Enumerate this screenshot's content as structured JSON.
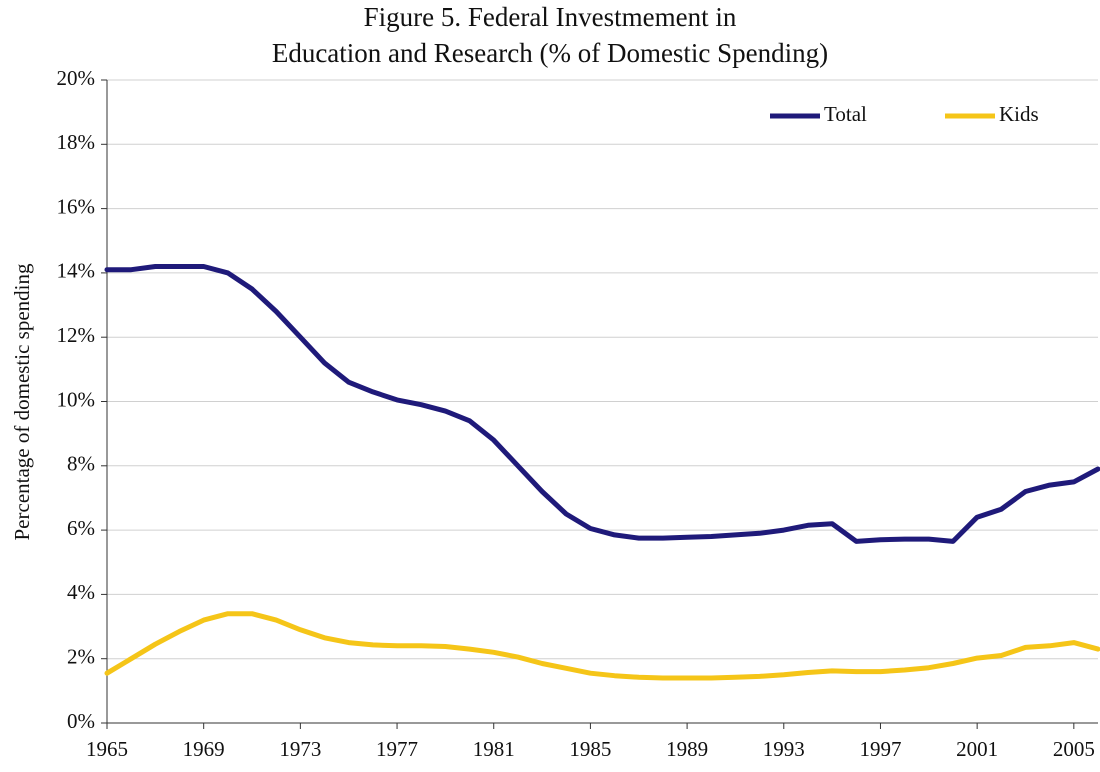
{
  "chart_data": {
    "type": "line",
    "title": [
      "Figure 5.  Federal Investmement in",
      "Education and Research (% of Domestic Spending)"
    ],
    "y_label": "Percentage of domestic spending",
    "x": [
      1965,
      1966,
      1967,
      1968,
      1969,
      1970,
      1971,
      1972,
      1973,
      1974,
      1975,
      1976,
      1977,
      1978,
      1979,
      1980,
      1981,
      1982,
      1983,
      1984,
      1985,
      1986,
      1987,
      1988,
      1989,
      1990,
      1991,
      1992,
      1993,
      1994,
      1995,
      1996,
      1997,
      1998,
      1999,
      2000,
      2001,
      2002,
      2003,
      2004,
      2005,
      2006
    ],
    "series": [
      {
        "name": "Total",
        "color": "#1f1a7a",
        "values": [
          14.1,
          14.1,
          14.2,
          14.2,
          14.2,
          14.0,
          13.5,
          12.8,
          12.0,
          11.2,
          10.6,
          10.3,
          10.05,
          9.9,
          9.7,
          9.4,
          8.8,
          8.0,
          7.2,
          6.5,
          6.05,
          5.85,
          5.75,
          5.75,
          5.78,
          5.8,
          5.85,
          5.9,
          6.0,
          6.15,
          6.2,
          5.65,
          5.7,
          5.72,
          5.72,
          5.65,
          6.4,
          6.65,
          7.2,
          7.4,
          7.5,
          7.9
        ]
      },
      {
        "name": "Kids",
        "color": "#f5c518",
        "values": [
          1.55,
          2.0,
          2.45,
          2.85,
          3.2,
          3.4,
          3.4,
          3.2,
          2.9,
          2.65,
          2.5,
          2.43,
          2.4,
          2.4,
          2.38,
          2.3,
          2.2,
          2.05,
          1.85,
          1.7,
          1.55,
          1.47,
          1.42,
          1.4,
          1.4,
          1.4,
          1.42,
          1.45,
          1.5,
          1.57,
          1.62,
          1.6,
          1.6,
          1.65,
          1.72,
          1.85,
          2.02,
          2.1,
          2.35,
          2.4,
          2.5,
          2.3
        ]
      }
    ],
    "xlim": [
      1965,
      2006
    ],
    "xticks": [
      1965,
      1969,
      1973,
      1977,
      1981,
      1985,
      1989,
      1993,
      1997,
      2001,
      2005
    ],
    "ylim": [
      0,
      20
    ],
    "yticks": [
      {
        "value": 0,
        "label": "0%"
      },
      {
        "value": 2,
        "label": "2%"
      },
      {
        "value": 4,
        "label": "4%"
      },
      {
        "value": 6,
        "label": "6%"
      },
      {
        "value": 8,
        "label": "8%"
      },
      {
        "value": 10,
        "label": "10%"
      },
      {
        "value": 12,
        "label": "12%"
      },
      {
        "value": 14,
        "label": "14%"
      },
      {
        "value": 16,
        "label": "16%"
      },
      {
        "value": 18,
        "label": "18%"
      },
      {
        "value": 20,
        "label": "20%"
      }
    ],
    "grid": true,
    "legend": "top-right"
  }
}
